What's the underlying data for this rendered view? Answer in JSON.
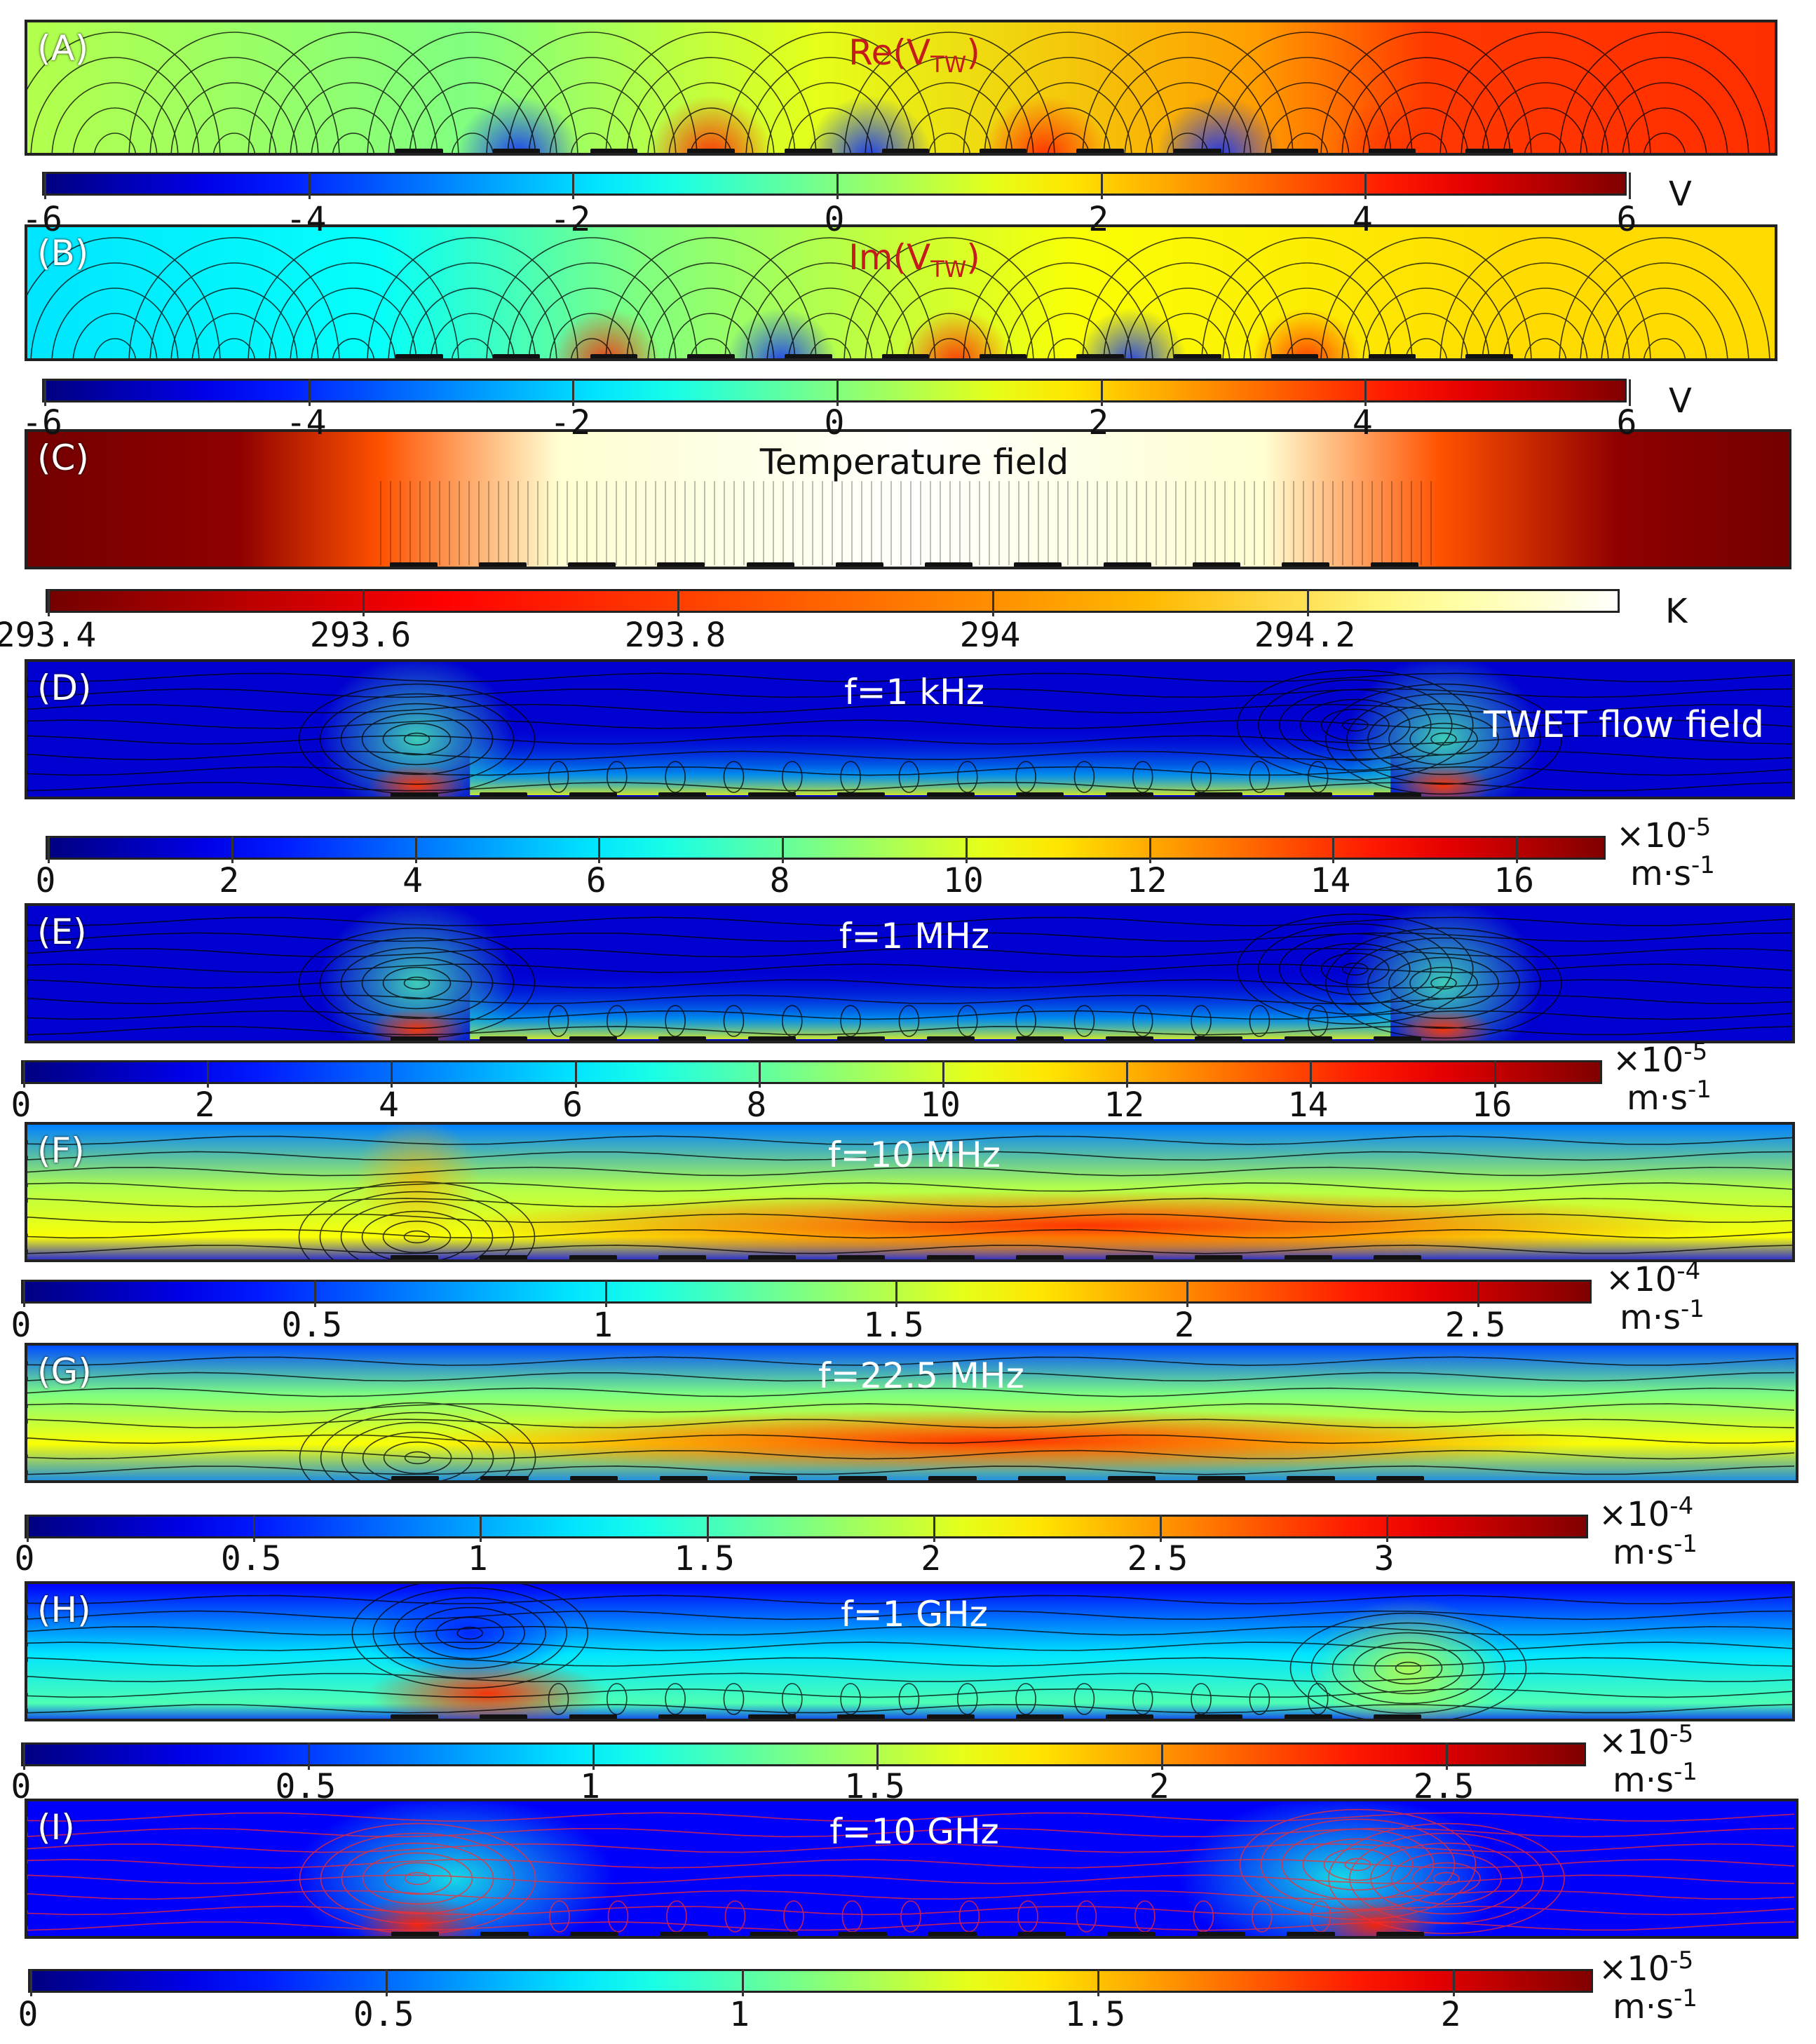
{
  "panels": [
    {
      "id": "A",
      "label": "(A)",
      "title": "Re(V",
      "title_sub": "TW",
      "title_close": ")",
      "title_color": "red"
    },
    {
      "id": "B",
      "label": "(B)",
      "title": "Im(V",
      "title_sub": "TW",
      "title_close": ")",
      "title_color": "red"
    },
    {
      "id": "C",
      "label": "(C)",
      "title": "Temperature field",
      "title_color": "dark"
    },
    {
      "id": "D",
      "label": "(D)",
      "title": "f=1 kHz",
      "subtitle": "TWET flow field"
    },
    {
      "id": "E",
      "label": "(E)",
      "title": "f=1 MHz"
    },
    {
      "id": "F",
      "label": "(F)",
      "title": "f=10 MHz"
    },
    {
      "id": "G",
      "label": "(G)",
      "title": "f=22.5 MHz"
    },
    {
      "id": "H",
      "label": "(H)",
      "title": "f=1 GHz"
    },
    {
      "id": "I",
      "label": "(I)",
      "title": "f=10 GHz"
    }
  ],
  "colorbars": [
    {
      "id": "A",
      "ticks": [
        "-6",
        "-4",
        "-2",
        "0",
        "2",
        "4",
        "6"
      ],
      "unit": "V",
      "scale": ""
    },
    {
      "id": "B",
      "ticks": [
        "-6",
        "-4",
        "-2",
        "0",
        "2",
        "4",
        "6"
      ],
      "unit": "V",
      "scale": ""
    },
    {
      "id": "C",
      "ticks": [
        "293.4",
        "293.6",
        "293.8",
        "294",
        "294.2"
      ],
      "unit": "K",
      "scale": ""
    },
    {
      "id": "D",
      "ticks": [
        "0",
        "2",
        "4",
        "6",
        "8",
        "10",
        "12",
        "14",
        "16"
      ],
      "unit": "m·s",
      "unit_exp": "-1",
      "scale": "×10",
      "scale_exp": "-5"
    },
    {
      "id": "E",
      "ticks": [
        "0",
        "2",
        "4",
        "6",
        "8",
        "10",
        "12",
        "14",
        "16"
      ],
      "unit": "m·s",
      "unit_exp": "-1",
      "scale": "×10",
      "scale_exp": "-5"
    },
    {
      "id": "F",
      "ticks": [
        "0",
        "0.5",
        "1",
        "1.5",
        "2",
        "2.5"
      ],
      "unit": "m·s",
      "unit_exp": "-1",
      "scale": "×10",
      "scale_exp": "-4"
    },
    {
      "id": "G",
      "ticks": [
        "0",
        "0.5",
        "1",
        "1.5",
        "2",
        "2.5",
        "3"
      ],
      "unit": "m·s",
      "unit_exp": "-1",
      "scale": "×10",
      "scale_exp": "-4"
    },
    {
      "id": "H",
      "ticks": [
        "0",
        "0.5",
        "1",
        "1.5",
        "2",
        "2.5"
      ],
      "unit": "m·s",
      "unit_exp": "-1",
      "scale": "×10",
      "scale_exp": "-5"
    },
    {
      "id": "I",
      "ticks": [
        "0",
        "0.5",
        "1",
        "1.5",
        "2"
      ],
      "unit": "m·s",
      "unit_exp": "-1",
      "scale": "×10",
      "scale_exp": "-5"
    }
  ],
  "colors": {
    "jet_low": "#00007f",
    "jet_high": "#7f0000",
    "streamline": "#000000",
    "streamline_I": "#ff2a2a"
  }
}
